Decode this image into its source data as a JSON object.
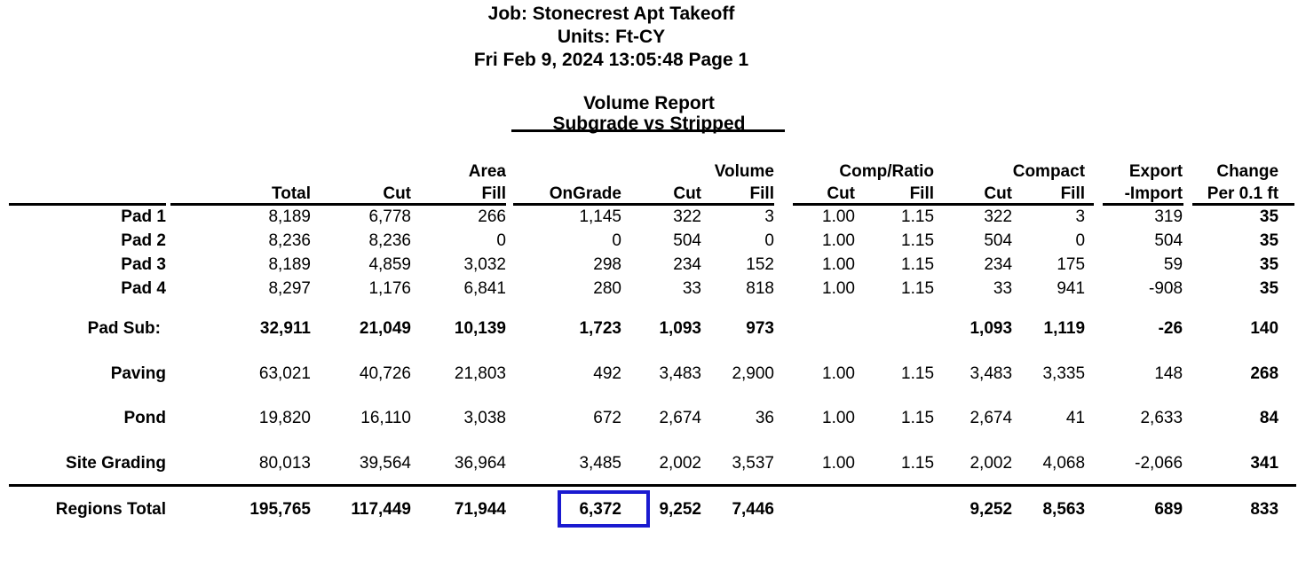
{
  "header": {
    "job_line": "Job: Stonecrest Apt Takeoff",
    "units_line": "Units: Ft-CY",
    "date_line": "Fri Feb 9, 2024 13:05:48 Page 1"
  },
  "title": {
    "line1": "Volume Report",
    "line2": "Subgrade vs Stripped"
  },
  "table": {
    "group_headers": {
      "area": "Area",
      "volume": "Volume",
      "comp_ratio": "Comp/Ratio",
      "compact": "Compact",
      "export": "Export",
      "change": "Change"
    },
    "column_headers": {
      "total": "Total",
      "area_cut": "Cut",
      "area_fill": "Fill",
      "ongrade": "OnGrade",
      "volume_cut": "Cut",
      "volume_fill": "Fill",
      "ratio_cut": "Cut",
      "ratio_fill": "Fill",
      "compact_cut": "Cut",
      "compact_fill": "Fill",
      "export_import": "-Import",
      "change_per": "Per 0.1 ft"
    },
    "column_keys": [
      "area-total",
      "area-cut",
      "area-fill",
      "ongrade",
      "volume-cut",
      "volume-fill",
      "ratio-cut",
      "ratio-fill",
      "compact-cut",
      "compact-fill",
      "export-import",
      "change-per-0-1-ft"
    ],
    "rows": [
      {
        "label": "Pad 1",
        "type": "item",
        "cells": [
          "8,189",
          "6,778",
          "266",
          "1,145",
          "322",
          "3",
          "1.00",
          "1.15",
          "322",
          "3",
          "319",
          "35"
        ]
      },
      {
        "label": "Pad 2",
        "type": "item",
        "cells": [
          "8,236",
          "8,236",
          "0",
          "0",
          "504",
          "0",
          "1.00",
          "1.15",
          "504",
          "0",
          "504",
          "35"
        ]
      },
      {
        "label": "Pad 3",
        "type": "item",
        "cells": [
          "8,189",
          "4,859",
          "3,032",
          "298",
          "234",
          "152",
          "1.00",
          "1.15",
          "234",
          "175",
          "59",
          "35"
        ]
      },
      {
        "label": "Pad 4",
        "type": "item",
        "cells": [
          "8,297",
          "1,176",
          "6,841",
          "280",
          "33",
          "818",
          "1.00",
          "1.15",
          "33",
          "941",
          "-908",
          "35"
        ]
      },
      {
        "label": "Pad Sub:",
        "type": "subtotal",
        "cells": [
          "32,911",
          "21,049",
          "10,139",
          "1,723",
          "1,093",
          "973",
          "",
          "",
          "1,093",
          "1,119",
          "-26",
          "140"
        ]
      },
      {
        "label": "Paving",
        "type": "item",
        "cells": [
          "63,021",
          "40,726",
          "21,803",
          "492",
          "3,483",
          "2,900",
          "1.00",
          "1.15",
          "3,483",
          "3,335",
          "148",
          "268"
        ]
      },
      {
        "label": "Pond",
        "type": "item",
        "cells": [
          "19,820",
          "16,110",
          "3,038",
          "672",
          "2,674",
          "36",
          "1.00",
          "1.15",
          "2,674",
          "41",
          "2,633",
          "84"
        ]
      },
      {
        "label": "Site Grading",
        "type": "item",
        "cells": [
          "80,013",
          "39,564",
          "36,964",
          "3,485",
          "2,002",
          "3,537",
          "1.00",
          "1.15",
          "2,002",
          "4,068",
          "-2,066",
          "341"
        ]
      },
      {
        "label": "Regions Total",
        "type": "total",
        "cells": [
          "195,765",
          "117,449",
          "71,944",
          "6,372",
          "9,252",
          "7,446",
          "",
          "",
          "9,252",
          "8,563",
          "689",
          "833"
        ]
      }
    ],
    "highlight": {
      "row": "Regions Total",
      "column": "OnGrade",
      "value": "6,372",
      "box_color": "#1a1ad0"
    }
  }
}
